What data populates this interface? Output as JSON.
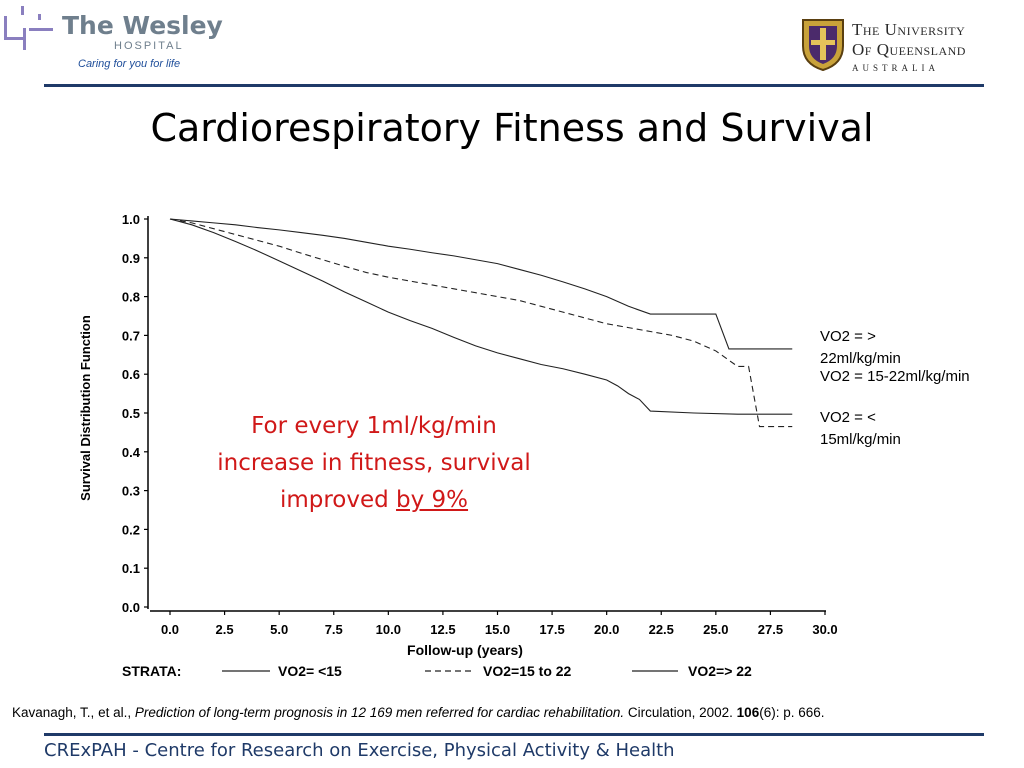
{
  "header": {
    "wesley_name": "The Wesley",
    "wesley_sub": "HOSPITAL",
    "wesley_tagline": "Caring for you for life",
    "uq_line1": "The University",
    "uq_line2": "Of Queensland",
    "uq_line3": "AUSTRALIA"
  },
  "title": "Cardiorespiratory Fitness and Survival",
  "chart_data": {
    "type": "line",
    "title": "",
    "xlabel": "Follow-up (years)",
    "ylabel": "Survival Distribution Function",
    "xlim": [
      0,
      30
    ],
    "ylim": [
      0,
      1
    ],
    "x_ticks": [
      "0.0",
      "2.5",
      "5.0",
      "7.5",
      "10.0",
      "12.5",
      "15.0",
      "17.5",
      "20.0",
      "22.5",
      "25.0",
      "27.5",
      "30.0"
    ],
    "y_ticks": [
      "0.0",
      "0.1",
      "0.2",
      "0.3",
      "0.4",
      "0.5",
      "0.6",
      "0.7",
      "0.8",
      "0.9",
      "1.0"
    ],
    "strata_label": "STRATA:",
    "series": [
      {
        "name": "VO2= <15",
        "style": "solid",
        "x": [
          0,
          1,
          2,
          3,
          4,
          5,
          6,
          7,
          8,
          9,
          10,
          11,
          12,
          13,
          14,
          15,
          16,
          17,
          18,
          19,
          20,
          20.5,
          21,
          21.5,
          22,
          24,
          26,
          27,
          28.5
        ],
        "y": [
          1.0,
          0.985,
          0.965,
          0.942,
          0.918,
          0.892,
          0.866,
          0.84,
          0.812,
          0.786,
          0.76,
          0.738,
          0.718,
          0.695,
          0.673,
          0.655,
          0.64,
          0.625,
          0.614,
          0.6,
          0.585,
          0.57,
          0.55,
          0.535,
          0.505,
          0.5,
          0.497,
          0.497,
          0.497
        ]
      },
      {
        "name": "VO2=15 to 22",
        "style": "dashed",
        "x": [
          0,
          1,
          2,
          3,
          4,
          5,
          6,
          7,
          8,
          9,
          10,
          11,
          12,
          13,
          14,
          15,
          16,
          17,
          18,
          19,
          20,
          21,
          22,
          23,
          24,
          25,
          26,
          26.5,
          27,
          27.5,
          28.5
        ],
        "y": [
          1.0,
          0.99,
          0.975,
          0.96,
          0.945,
          0.93,
          0.912,
          0.895,
          0.878,
          0.862,
          0.85,
          0.84,
          0.83,
          0.82,
          0.81,
          0.8,
          0.79,
          0.775,
          0.76,
          0.745,
          0.73,
          0.72,
          0.71,
          0.7,
          0.685,
          0.66,
          0.62,
          0.62,
          0.465,
          0.465,
          0.465
        ]
      },
      {
        "name": "VO2=> 22",
        "style": "solid-long",
        "x": [
          0,
          1,
          2,
          3,
          4,
          5,
          6,
          7,
          8,
          9,
          10,
          11,
          12,
          13,
          14,
          15,
          16,
          17,
          18,
          19,
          20,
          21,
          22,
          25,
          25.6,
          26.5,
          28.5
        ],
        "y": [
          1.0,
          0.995,
          0.99,
          0.985,
          0.978,
          0.972,
          0.965,
          0.958,
          0.95,
          0.94,
          0.93,
          0.922,
          0.913,
          0.905,
          0.895,
          0.885,
          0.87,
          0.855,
          0.838,
          0.82,
          0.8,
          0.775,
          0.755,
          0.755,
          0.665,
          0.665,
          0.665
        ]
      }
    ],
    "right_labels": [
      "VO2 = > 22ml/kg/min",
      "VO2 = 15-22ml/kg/min",
      "VO2 = < 15ml/kg/min"
    ]
  },
  "callout": {
    "line1": "For every 1ml/kg/min",
    "line2": "increase in fitness, survival",
    "line3_pre": "improved ",
    "line3_underlined": "by 9%"
  },
  "citation": {
    "authors": "Kavanagh, T., et al., ",
    "title": "Prediction of long-term prognosis in 12 169 men referred for cardiac rehabilitation.",
    "journal": " Circulation, 2002. ",
    "volume": "106",
    "issue_pages": "(6): p. 666."
  },
  "footer": "CRExPAH - Centre for Research on Exercise, Physical Activity & Health",
  "colors": {
    "navy": "#1f3a68",
    "callout_red": "#d01818",
    "wesley_purple": "#8a7fbf"
  }
}
